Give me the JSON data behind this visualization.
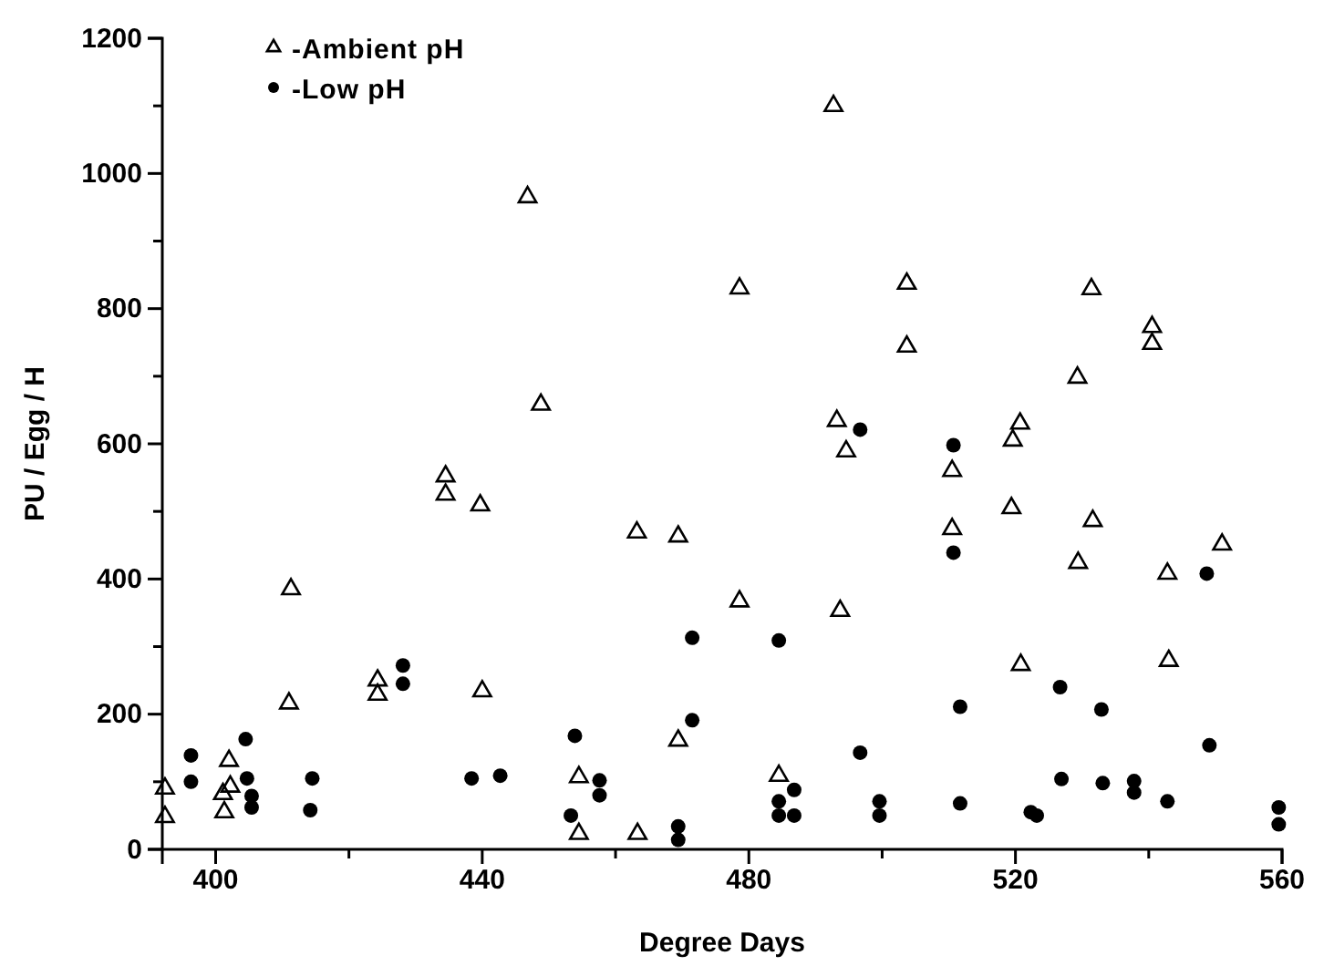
{
  "chart_data": {
    "type": "scatter",
    "xlabel": "Degree Days",
    "ylabel": "PU / Egg / H",
    "xlim": [
      392,
      560
    ],
    "ylim": [
      0,
      1200
    ],
    "xticks": [
      400,
      {
        "value": 420,
        "label": null
      },
      440,
      {
        "value": 460,
        "label": null
      },
      480,
      {
        "value": 500,
        "label": null
      },
      520,
      {
        "value": 540,
        "label": null
      },
      560
    ],
    "yticks": [
      0,
      {
        "value": 100,
        "label": null
      },
      200,
      {
        "value": 300,
        "label": null
      },
      400,
      {
        "value": 500,
        "label": null
      },
      600,
      {
        "value": 700,
        "label": null
      },
      800,
      {
        "value": 900,
        "label": null
      },
      1000,
      {
        "value": 1100,
        "label": null
      },
      1200
    ],
    "legend": "top left",
    "grid": false,
    "series": [
      {
        "name": "-Ambient pH",
        "color": "#000000",
        "marker": "triangle",
        "x": [
          392.4,
          392.4,
          402.0,
          402.2,
          401.1,
          401.3,
          411.3,
          411.0,
          424.3,
          424.3,
          434.5,
          434.5,
          439.7,
          440.0,
          448.8,
          446.8,
          492.7,
          478.6,
          503.7,
          503.7,
          493.2,
          494.6,
          463.2,
          469.4,
          478.6,
          493.7,
          469.4,
          454.5,
          454.5,
          463.3,
          484.5,
          531.4,
          540.5,
          540.5,
          529.3,
          520.7,
          519.6,
          510.5,
          519.4,
          510.5,
          531.6,
          529.4,
          542.8,
          551.0,
          520.8,
          543.0
        ],
        "values": [
          90,
          48,
          131,
          93,
          82,
          55,
          385,
          216,
          250,
          229,
          552,
          525,
          509,
          234,
          658,
          965,
          1100,
          830,
          837,
          744,
          634,
          589,
          469,
          463,
          367,
          353,
          161,
          107,
          23,
          23,
          109,
          829,
          773,
          748,
          698,
          630,
          605,
          560,
          505,
          474,
          486,
          424,
          408,
          451,
          273,
          279
        ]
      },
      {
        "name": "-Low pH",
        "color": "#000000",
        "marker": "circle",
        "x": [
          396.3,
          396.3,
          404.5,
          404.7,
          405.4,
          405.4,
          414.5,
          414.2,
          428.1,
          428.1,
          438.4,
          442.7,
          496.7,
          471.5,
          484.5,
          471.5,
          453.9,
          496.7,
          457.6,
          457.6,
          453.3,
          469.4,
          469.4,
          484.5,
          484.5,
          486.8,
          486.8,
          499.6,
          499.6,
          510.7,
          510.7,
          548.7,
          511.7,
          526.7,
          532.9,
          549.1,
          511.7,
          522.3,
          523.2,
          526.9,
          533.1,
          537.8,
          537.8,
          542.8,
          559.5,
          559.5
        ],
        "values": [
          139,
          100,
          163,
          105,
          79,
          62,
          105,
          58,
          272,
          245,
          105,
          109,
          621,
          313,
          309,
          191,
          168,
          143,
          102,
          80,
          50,
          34,
          14,
          71,
          50,
          88,
          50,
          71,
          50,
          598,
          439,
          408,
          211,
          240,
          207,
          154,
          68,
          55,
          50,
          104,
          98,
          101,
          84,
          71,
          62,
          37
        ]
      }
    ]
  }
}
